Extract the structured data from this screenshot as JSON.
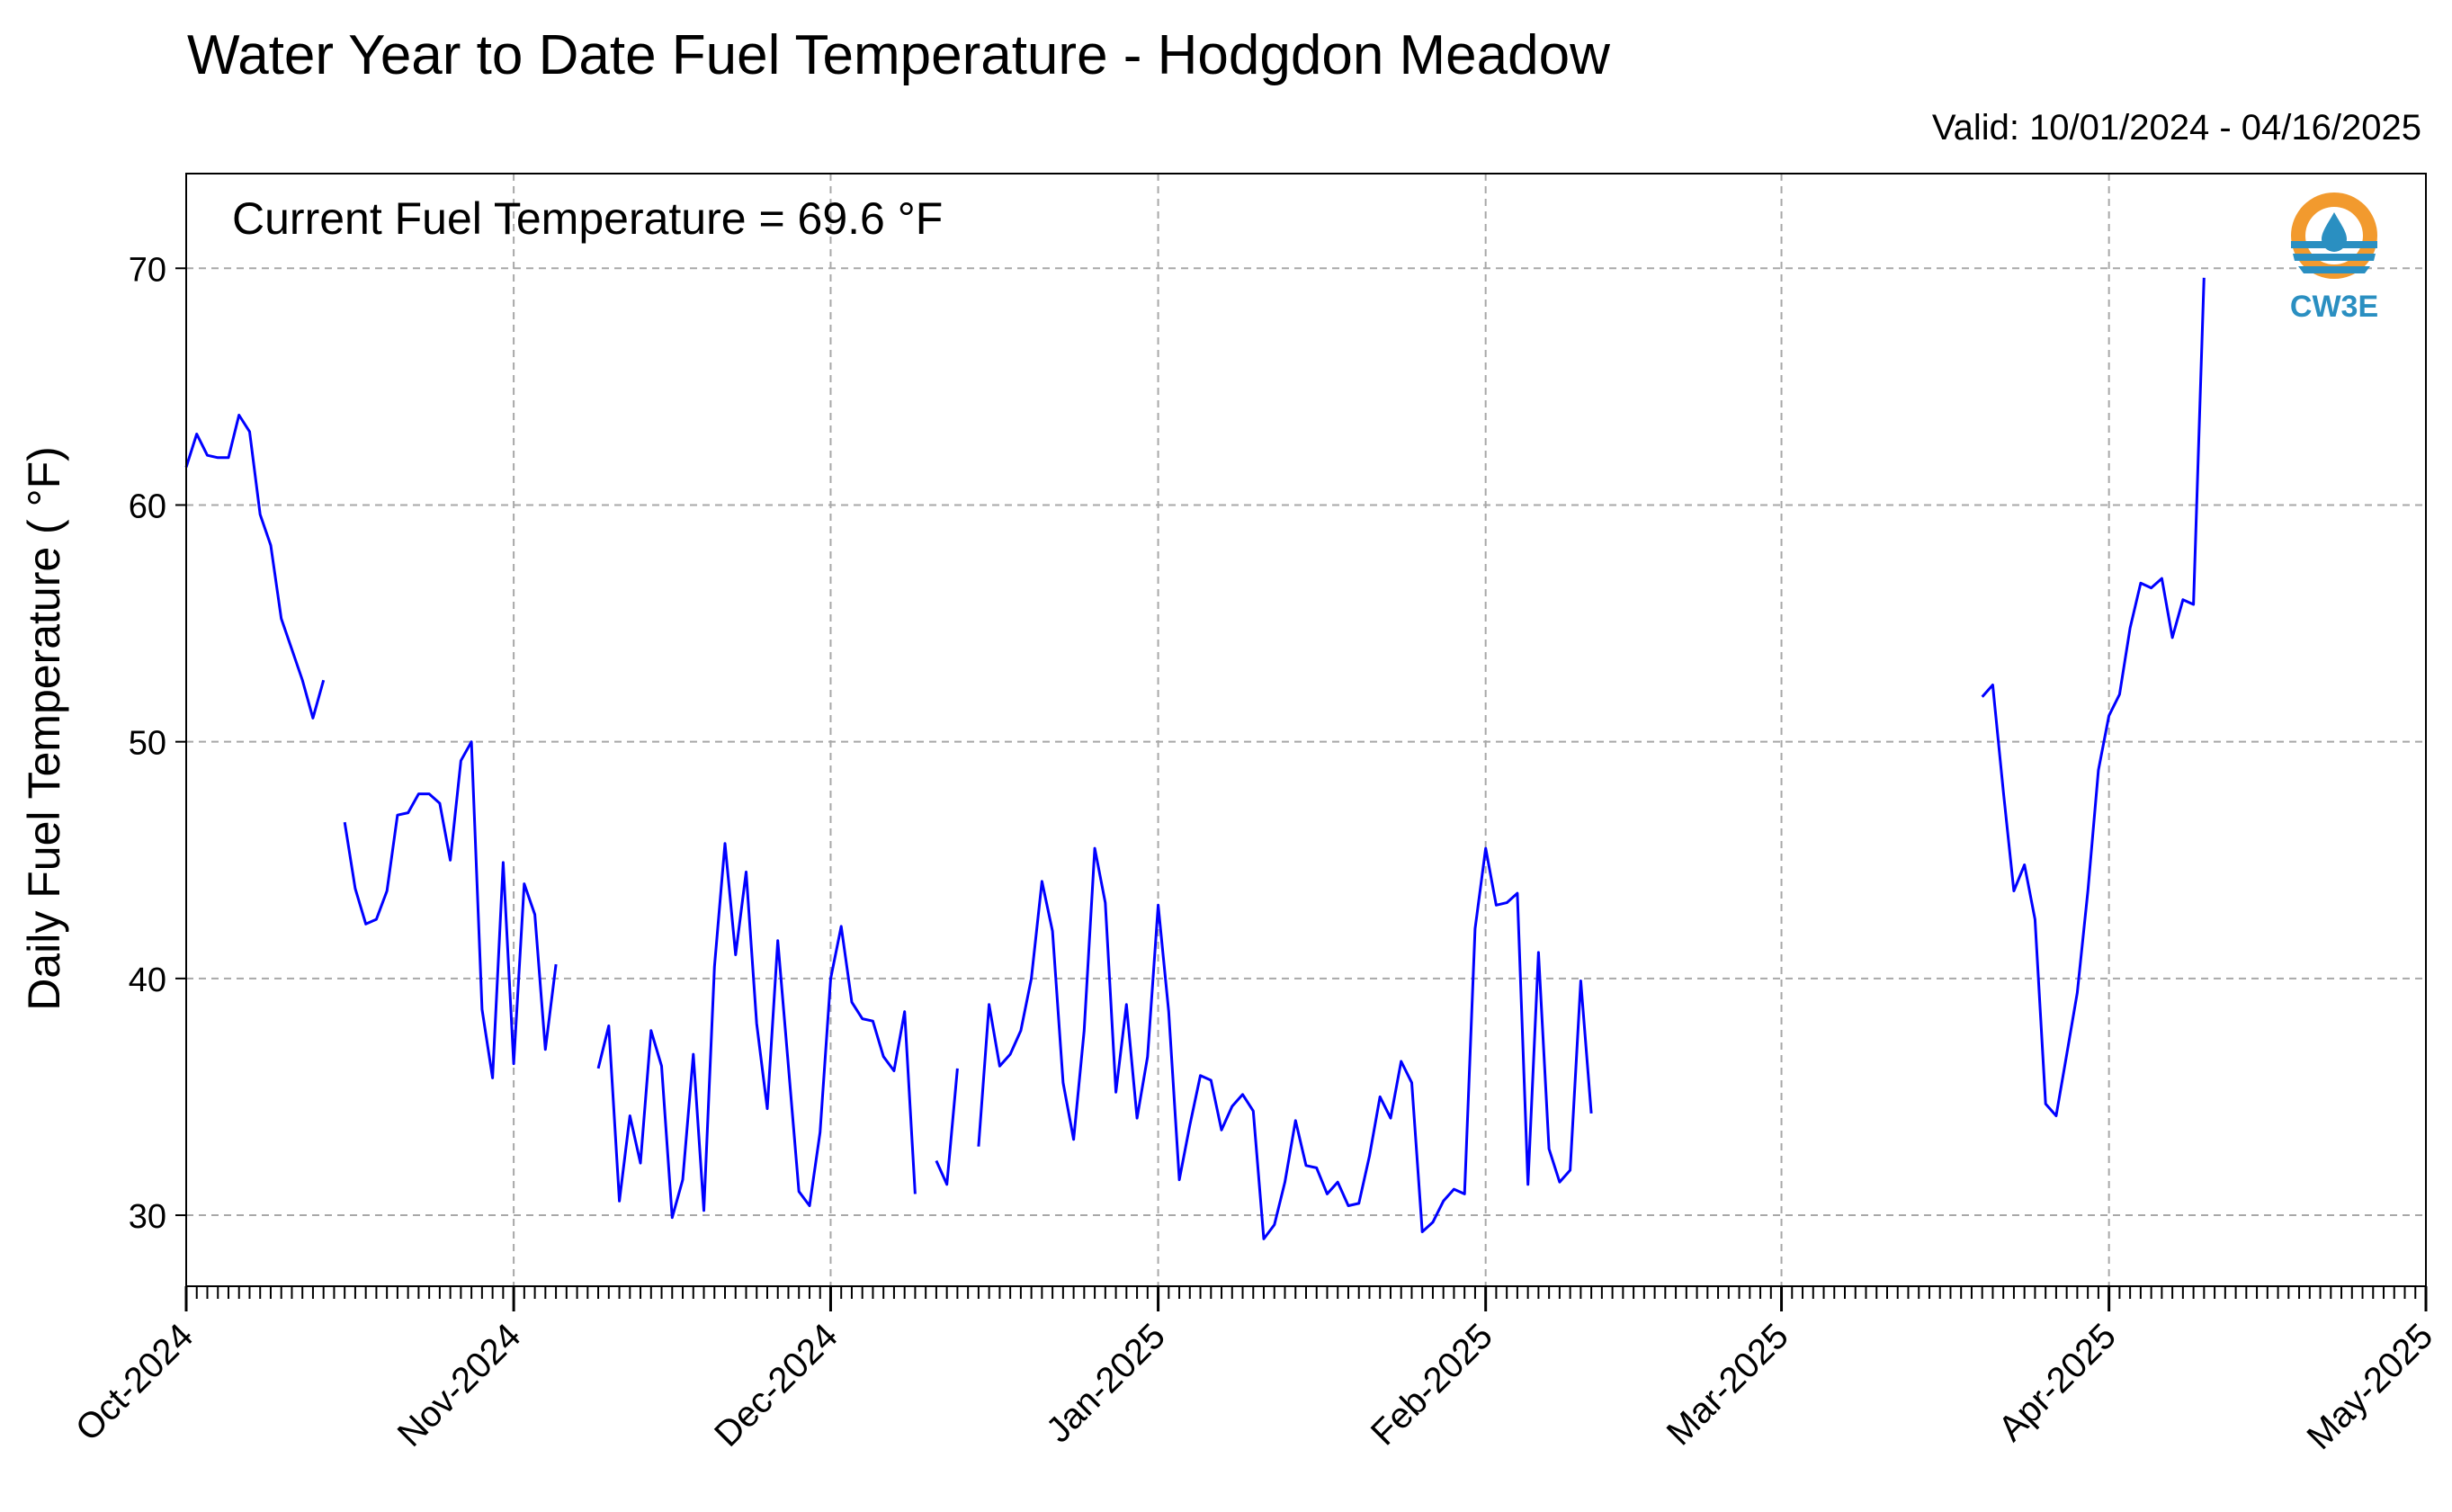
{
  "chart_data": {
    "type": "line",
    "title": "Water Year to Date Fuel Temperature - Hodgdon Meadow",
    "subtitle": "Valid: 10/01/2024 - 04/16/2025",
    "annotation": "Current Fuel Temperature = 69.6  °F",
    "logo_text": "CW3E",
    "ylabel": "Daily Fuel Temperature ( °F)",
    "xlabel": "",
    "xlim": [
      "2024-10-01",
      "2025-05-01"
    ],
    "ylim": [
      27,
      74
    ],
    "yticks": [
      30,
      40,
      50,
      60,
      70
    ],
    "xtick_labels": [
      "Oct-2024",
      "Nov-2024",
      "Dec-2024",
      "Jan-2025",
      "Feb-2025",
      "Mar-2025",
      "Apr-2025",
      "May-2025"
    ],
    "xtick_dates": [
      "2024-10-01",
      "2024-11-01",
      "2024-12-01",
      "2025-01-01",
      "2025-02-01",
      "2025-03-01",
      "2025-04-01",
      "2025-05-01"
    ],
    "grid": true,
    "line_color": "#0000ff",
    "series": [
      {
        "start_date": "2024-10-01",
        "values": [
          61.6,
          63.0,
          62.1,
          62.0,
          62.0,
          63.8,
          63.1,
          59.6,
          58.3,
          55.2,
          53.9,
          52.6,
          51.0,
          52.6,
          null,
          46.6,
          43.8,
          42.3,
          42.5,
          43.7,
          46.9,
          47.0,
          47.8,
          47.8,
          47.4,
          45.0,
          49.2,
          50.0,
          38.7,
          35.8,
          44.9,
          36.4,
          44.0,
          42.7,
          37.0,
          40.6,
          null,
          null,
          null,
          36.2,
          38.0,
          30.6,
          34.2,
          32.2,
          37.8,
          36.3,
          29.9,
          31.5,
          36.8,
          30.2,
          40.5,
          45.7,
          41.0,
          44.5,
          38.1,
          34.5,
          41.6,
          36.3,
          31.0,
          30.4,
          33.5,
          40.0,
          42.2,
          39.0,
          38.3,
          38.2,
          36.7,
          36.1,
          38.6,
          30.9,
          null,
          32.3,
          31.3,
          36.2,
          null,
          32.9,
          38.9,
          36.3,
          36.8,
          37.8,
          40.0,
          44.1,
          42.0,
          35.6,
          33.2,
          37.8,
          45.5,
          43.2,
          35.2,
          38.9,
          34.1,
          36.7,
          43.1,
          38.6,
          31.5,
          33.8,
          35.9,
          35.7,
          33.6,
          34.6,
          35.1,
          34.4,
          29.0,
          29.6,
          31.4,
          34.0,
          32.1,
          32.0,
          30.9,
          31.4,
          30.4,
          30.5,
          32.5,
          35.0,
          34.1,
          36.5,
          35.6,
          29.3,
          29.7,
          30.6,
          31.1,
          30.9,
          42.1,
          45.5,
          43.1,
          43.2,
          43.6,
          31.3,
          41.1,
          32.8,
          31.4,
          31.9,
          39.9,
          34.3,
          null,
          null,
          null,
          null,
          null,
          null,
          null,
          null,
          null,
          null,
          null,
          null,
          null,
          null,
          null,
          null,
          null,
          null,
          null,
          null,
          null,
          null,
          null,
          null,
          null,
          null,
          null,
          null,
          null,
          null,
          null,
          null,
          null,
          null,
          null,
          null,
          51.9,
          52.4,
          47.9,
          43.7,
          44.8,
          42.5,
          34.7,
          34.2,
          36.8,
          39.4,
          43.7,
          48.8,
          51.1,
          52.0,
          54.8,
          56.7,
          56.5,
          56.9,
          54.4,
          56.0,
          55.8,
          69.6
        ]
      }
    ]
  },
  "logo_colors": {
    "orange": "#f29a2e",
    "blue": "#2a8fc1"
  }
}
